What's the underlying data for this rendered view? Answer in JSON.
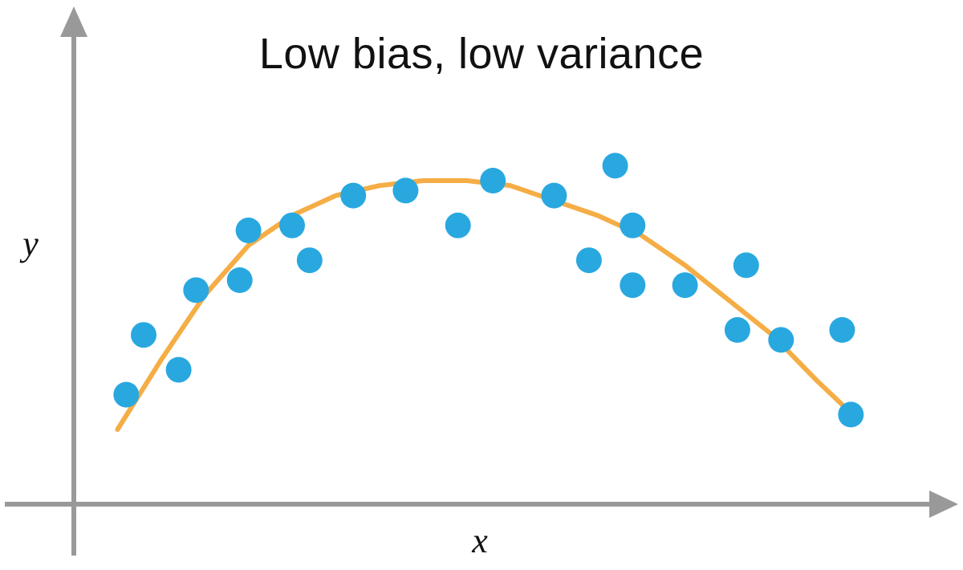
{
  "chart_data": {
    "type": "scatter",
    "title": "Low bias, low variance",
    "xlabel": "x",
    "ylabel": "y",
    "xlim": [
      0,
      1
    ],
    "ylim": [
      0,
      1
    ],
    "grid": false,
    "ticks": false,
    "colors": {
      "axis": "#999999",
      "points": "#29a8e0",
      "curve": "#f5ad45",
      "text": "#111111"
    },
    "series": [
      {
        "type": "scatter",
        "points": [
          {
            "x": 0.06,
            "y": 0.22
          },
          {
            "x": 0.08,
            "y": 0.34
          },
          {
            "x": 0.12,
            "y": 0.27
          },
          {
            "x": 0.14,
            "y": 0.43
          },
          {
            "x": 0.19,
            "y": 0.45
          },
          {
            "x": 0.2,
            "y": 0.55
          },
          {
            "x": 0.25,
            "y": 0.56
          },
          {
            "x": 0.27,
            "y": 0.49
          },
          {
            "x": 0.32,
            "y": 0.62
          },
          {
            "x": 0.38,
            "y": 0.63
          },
          {
            "x": 0.44,
            "y": 0.56
          },
          {
            "x": 0.48,
            "y": 0.65
          },
          {
            "x": 0.55,
            "y": 0.62
          },
          {
            "x": 0.59,
            "y": 0.49
          },
          {
            "x": 0.62,
            "y": 0.68
          },
          {
            "x": 0.64,
            "y": 0.56
          },
          {
            "x": 0.64,
            "y": 0.44
          },
          {
            "x": 0.7,
            "y": 0.44
          },
          {
            "x": 0.76,
            "y": 0.35
          },
          {
            "x": 0.77,
            "y": 0.48
          },
          {
            "x": 0.81,
            "y": 0.33
          },
          {
            "x": 0.88,
            "y": 0.35
          },
          {
            "x": 0.89,
            "y": 0.18
          }
        ]
      },
      {
        "type": "line",
        "points": [
          {
            "x": 0.05,
            "y": 0.15
          },
          {
            "x": 0.1,
            "y": 0.29
          },
          {
            "x": 0.15,
            "y": 0.42
          },
          {
            "x": 0.2,
            "y": 0.52
          },
          {
            "x": 0.25,
            "y": 0.58
          },
          {
            "x": 0.3,
            "y": 0.62
          },
          {
            "x": 0.35,
            "y": 0.64
          },
          {
            "x": 0.4,
            "y": 0.65
          },
          {
            "x": 0.45,
            "y": 0.65
          },
          {
            "x": 0.5,
            "y": 0.64
          },
          {
            "x": 0.55,
            "y": 0.61
          },
          {
            "x": 0.6,
            "y": 0.58
          },
          {
            "x": 0.65,
            "y": 0.54
          },
          {
            "x": 0.7,
            "y": 0.48
          },
          {
            "x": 0.75,
            "y": 0.41
          },
          {
            "x": 0.8,
            "y": 0.34
          },
          {
            "x": 0.85,
            "y": 0.25
          },
          {
            "x": 0.88,
            "y": 0.2
          }
        ]
      }
    ]
  }
}
